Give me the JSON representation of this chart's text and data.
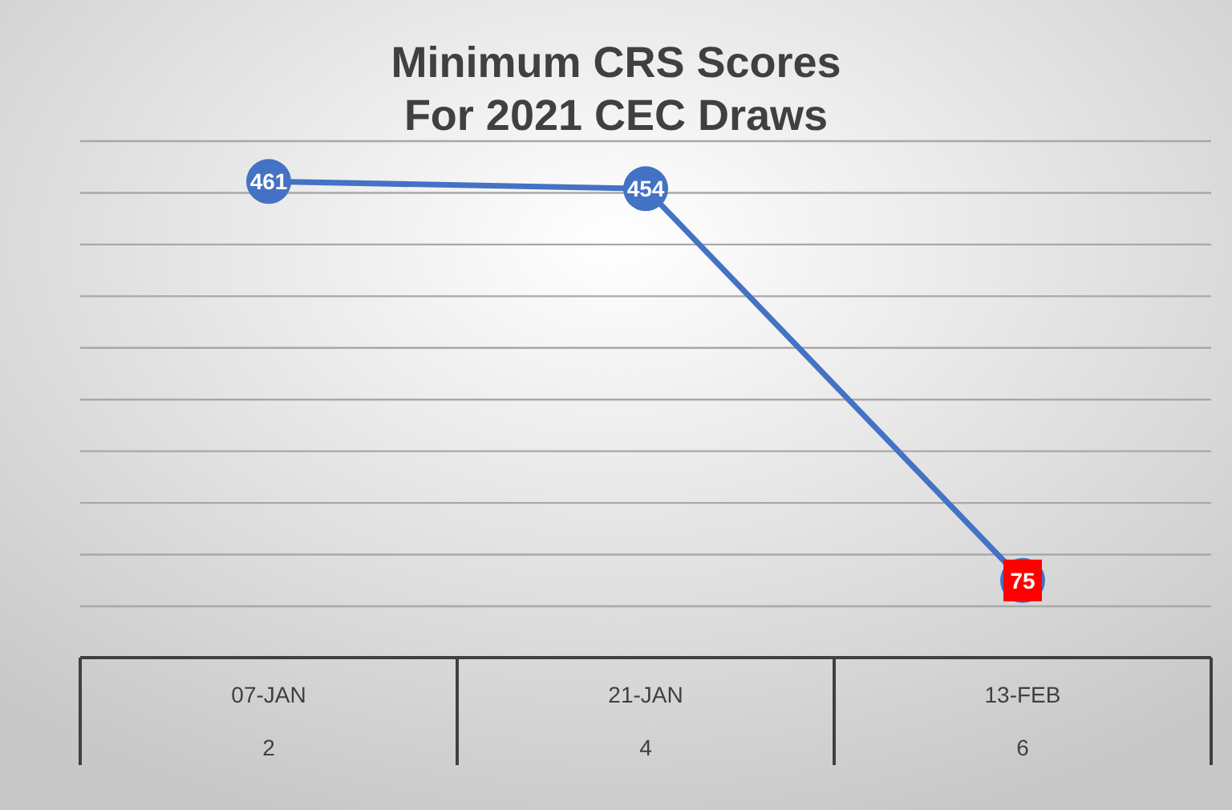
{
  "chart_data": {
    "type": "line",
    "title": "Minimum CRS Scores\nFor 2021 CEC Draws",
    "categories": [
      "07-JAN\n2",
      "21-JAN\n4",
      "13-FEB\n6"
    ],
    "series": [
      {
        "color": "#4472c4",
        "values": [
          461,
          454,
          75
        ],
        "colors": [
          "#4472c4",
          "#4472c4",
          "#ff0000"
        ]
      }
    ],
    "ylim": [
      50,
      500
    ],
    "yticks": [
      {
        "value": 50,
        "label": null
      },
      {
        "value": 100,
        "label": null
      },
      {
        "value": 150,
        "label": null
      },
      {
        "value": 200,
        "label": null
      },
      {
        "value": 250,
        "label": null
      },
      {
        "value": 300,
        "label": null
      },
      {
        "value": 350,
        "label": null
      },
      {
        "value": 400,
        "label": null
      },
      {
        "value": 450,
        "label": null
      },
      {
        "value": 500,
        "label": null
      }
    ],
    "grid": "y",
    "data_labels": true,
    "marker": "circle",
    "line_style": "solid"
  }
}
